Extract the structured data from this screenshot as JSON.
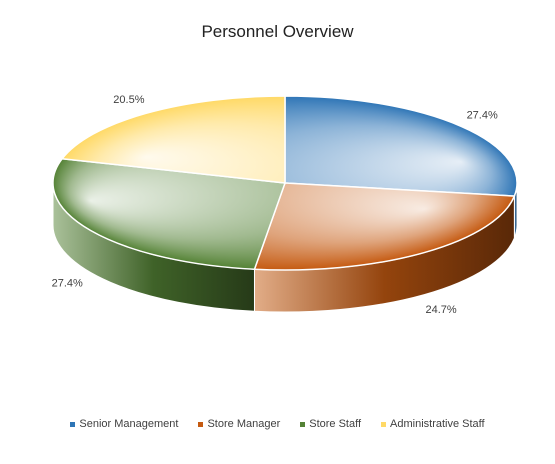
{
  "chart_data": {
    "type": "pie",
    "title": "Personnel Overview",
    "categories": [
      "Senior Management",
      "Store Manager",
      "Store Staff",
      "Administrative Staff"
    ],
    "values": [
      27.4,
      24.7,
      27.4,
      20.5
    ],
    "labels": [
      "27.4%",
      "24.7%",
      "27.4%",
      "20.5%"
    ],
    "colors": [
      "#2E75B6",
      "#C55A11",
      "#548235",
      "#FFD966"
    ],
    "legend_position": "bottom",
    "style": "3d"
  }
}
